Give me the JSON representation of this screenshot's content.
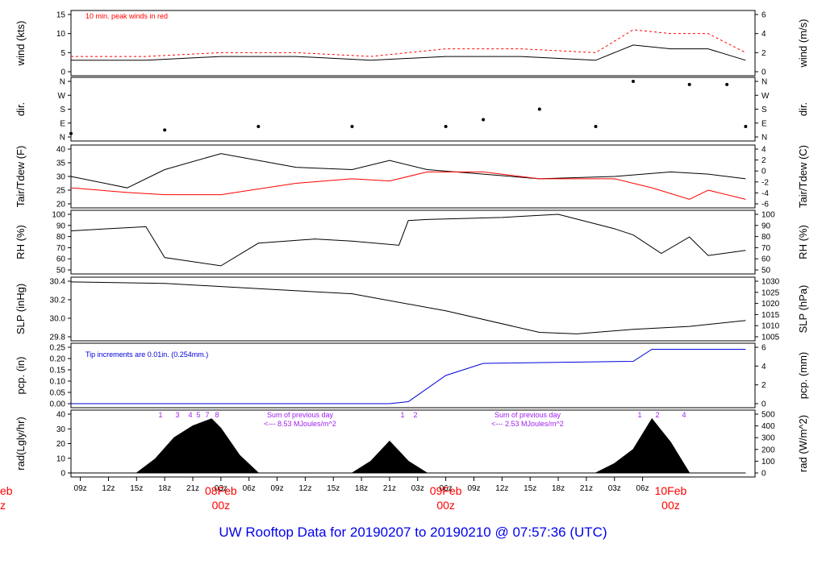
{
  "title": "UW Rooftop Data for 20190207  to  20190210 @ 07:57:36  (UTC)",
  "colors": {
    "black": "#000000",
    "red": "#ff0000",
    "blue": "#0000dd",
    "purple": "#a020f0",
    "title": "#0000ee"
  },
  "time_axis": {
    "tick_labels": [
      "09z",
      "12z",
      "15z",
      "18z",
      "21z",
      "03z",
      "06z",
      "09z",
      "12z",
      "15z",
      "18z",
      "21z",
      "03z",
      "06z",
      "09z",
      "12z",
      "15z",
      "18z",
      "21z",
      "03z",
      "06z"
    ],
    "date_labels": [
      {
        "date": "08Feb",
        "hour": "00z"
      },
      {
        "date": "09Feb",
        "hour": "00z"
      },
      {
        "date": "10Feb",
        "hour": "00z"
      }
    ],
    "cut_left_date": "eb",
    "cut_left_hour": "z"
  },
  "panels": {
    "wind": {
      "ylabel_left": "wind (kts)",
      "ylabel_right": "wind (m/s)",
      "note": "10 min. peak winds in red",
      "left_ticks": [
        "15",
        "10",
        "5",
        "0"
      ],
      "right_ticks": [
        "6",
        "4",
        "2",
        "0"
      ]
    },
    "dir": {
      "ylabel_left": "dir.",
      "ylabel_right": "dir.",
      "ticks": [
        "N",
        "W",
        "S",
        "E",
        "N"
      ]
    },
    "temp": {
      "ylabel_left": "Tair/Tdew (F)",
      "ylabel_right": "Tair/Tdew (C)",
      "left_ticks": [
        "40",
        "35",
        "30",
        "25",
        "20"
      ],
      "right_ticks": [
        "4",
        "2",
        "0",
        "-2",
        "-4",
        "-6"
      ]
    },
    "rh": {
      "ylabel_left": "RH (%)",
      "ylabel_right": "RH (%)",
      "ticks": [
        "100",
        "90",
        "80",
        "70",
        "60",
        "50"
      ]
    },
    "slp": {
      "ylabel_left": "SLP (inHg)",
      "ylabel_right": "SLP (hPa)",
      "left_ticks": [
        "30.4",
        "30.2",
        "30.0",
        "29.8"
      ],
      "right_ticks": [
        "1030",
        "1025",
        "1020",
        "1015",
        "1010",
        "1005"
      ]
    },
    "pcp": {
      "ylabel_left": "pcp. (in)",
      "ylabel_right": "pcp. (mm)",
      "note": "Tip increments are 0.01in. (0.254mm.)",
      "left_ticks": [
        "0.25",
        "0.20",
        "0.15",
        "0.10",
        "0.05",
        "0.00"
      ],
      "right_ticks": [
        "6",
        "4",
        "2",
        "0"
      ]
    },
    "rad": {
      "ylabel_left": "rad(Lgly/hr)",
      "ylabel_right": "rad (W/m^2)",
      "left_ticks": [
        "40",
        "30",
        "20",
        "10",
        "0"
      ],
      "right_ticks": [
        "500",
        "400",
        "300",
        "200",
        "100",
        "0"
      ],
      "annotations": [
        {
          "line1": "Sum of previous day",
          "line2": "<--- 8.53 MJoules/m^2"
        },
        {
          "line1": "Sum of previous day",
          "line2": "<--- 2.53 MJoules/m^2"
        }
      ],
      "hour_marks": [
        "1",
        "3",
        "4",
        "5",
        "7",
        "8",
        "1",
        "2",
        "1",
        "2",
        "4"
      ]
    }
  },
  "chart_data": [
    {
      "type": "line",
      "panel": "wind",
      "x_unit": "hours since 20190207 08z",
      "series": [
        {
          "name": "wind",
          "x": [
            0,
            8,
            16,
            24,
            32,
            40,
            48,
            56,
            60,
            64,
            68,
            72
          ],
          "values": [
            3,
            3,
            4,
            4,
            3,
            4,
            4,
            3,
            7,
            6,
            6,
            3
          ]
        },
        {
          "name": "10 min. peak winds",
          "x": [
            0,
            8,
            16,
            24,
            32,
            40,
            48,
            56,
            60,
            64,
            68,
            72
          ],
          "values": [
            4,
            4,
            5,
            5,
            4,
            6,
            6,
            5,
            11,
            10,
            10,
            5
          ]
        }
      ],
      "ylim": [
        0,
        15
      ]
    },
    {
      "type": "scatter",
      "panel": "dir",
      "series": [
        {
          "name": "dir",
          "x": [
            0,
            10,
            20,
            30,
            40,
            44,
            50,
            56,
            60,
            66,
            70,
            72
          ],
          "values": [
            22,
            45,
            68,
            68,
            68,
            112,
            180,
            68,
            360,
            340,
            340,
            68
          ]
        }
      ],
      "ylim": [
        0,
        360
      ]
    },
    {
      "type": "line",
      "panel": "temp",
      "series": [
        {
          "name": "Tair",
          "x": [
            0,
            6,
            10,
            16,
            24,
            30,
            34,
            38,
            44,
            50,
            58,
            64,
            68,
            72
          ],
          "values": [
            30,
            25,
            33,
            40,
            34,
            33,
            37,
            33,
            31,
            29,
            30,
            32,
            31,
            29
          ]
        },
        {
          "name": "Tdew",
          "x": [
            0,
            6,
            10,
            16,
            24,
            30,
            34,
            38,
            44,
            50,
            58,
            62,
            66,
            68,
            72
          ],
          "values": [
            25,
            23,
            22,
            22,
            27,
            29,
            28,
            32,
            32,
            29,
            29,
            25,
            20,
            24,
            20
          ]
        }
      ],
      "ylim": [
        18,
        42
      ]
    },
    {
      "type": "line",
      "panel": "rh",
      "series": [
        {
          "name": "RH",
          "x": [
            0,
            8,
            10,
            16,
            20,
            26,
            30,
            35,
            36,
            38,
            46,
            52,
            58,
            60,
            63,
            66,
            68,
            72
          ],
          "values": [
            84,
            88,
            58,
            50,
            72,
            76,
            74,
            70,
            94,
            95,
            97,
            100,
            86,
            80,
            62,
            78,
            60,
            65
          ]
        }
      ],
      "ylim": [
        46,
        100
      ]
    },
    {
      "type": "line",
      "panel": "slp",
      "series": [
        {
          "name": "SLP",
          "x": [
            0,
            10,
            20,
            30,
            40,
            50,
            54,
            60,
            66,
            72
          ],
          "values": [
            30.44,
            30.42,
            30.35,
            30.28,
            30.05,
            29.76,
            29.74,
            29.8,
            29.84,
            29.92
          ]
        }
      ],
      "ylim": [
        29.7,
        30.45
      ]
    },
    {
      "type": "line",
      "panel": "pcp",
      "series": [
        {
          "name": "pcp",
          "x": [
            0,
            34,
            36,
            40,
            44,
            60,
            62,
            72
          ],
          "values": [
            0,
            0,
            0.01,
            0.14,
            0.2,
            0.21,
            0.27,
            0.27
          ]
        }
      ],
      "ylim": [
        0,
        0.28
      ]
    },
    {
      "type": "area",
      "panel": "rad",
      "series": [
        {
          "name": "rad",
          "x": [
            0,
            7,
            9,
            11,
            13,
            15,
            16,
            18,
            20,
            30,
            32,
            34,
            36,
            38,
            56,
            58,
            60,
            62,
            64,
            66,
            72
          ],
          "values": [
            0,
            0,
            12,
            30,
            40,
            46,
            38,
            15,
            0,
            0,
            10,
            27,
            10,
            0,
            0,
            8,
            20,
            46,
            26,
            0,
            0
          ]
        }
      ],
      "ylim": [
        0,
        50
      ]
    }
  ]
}
